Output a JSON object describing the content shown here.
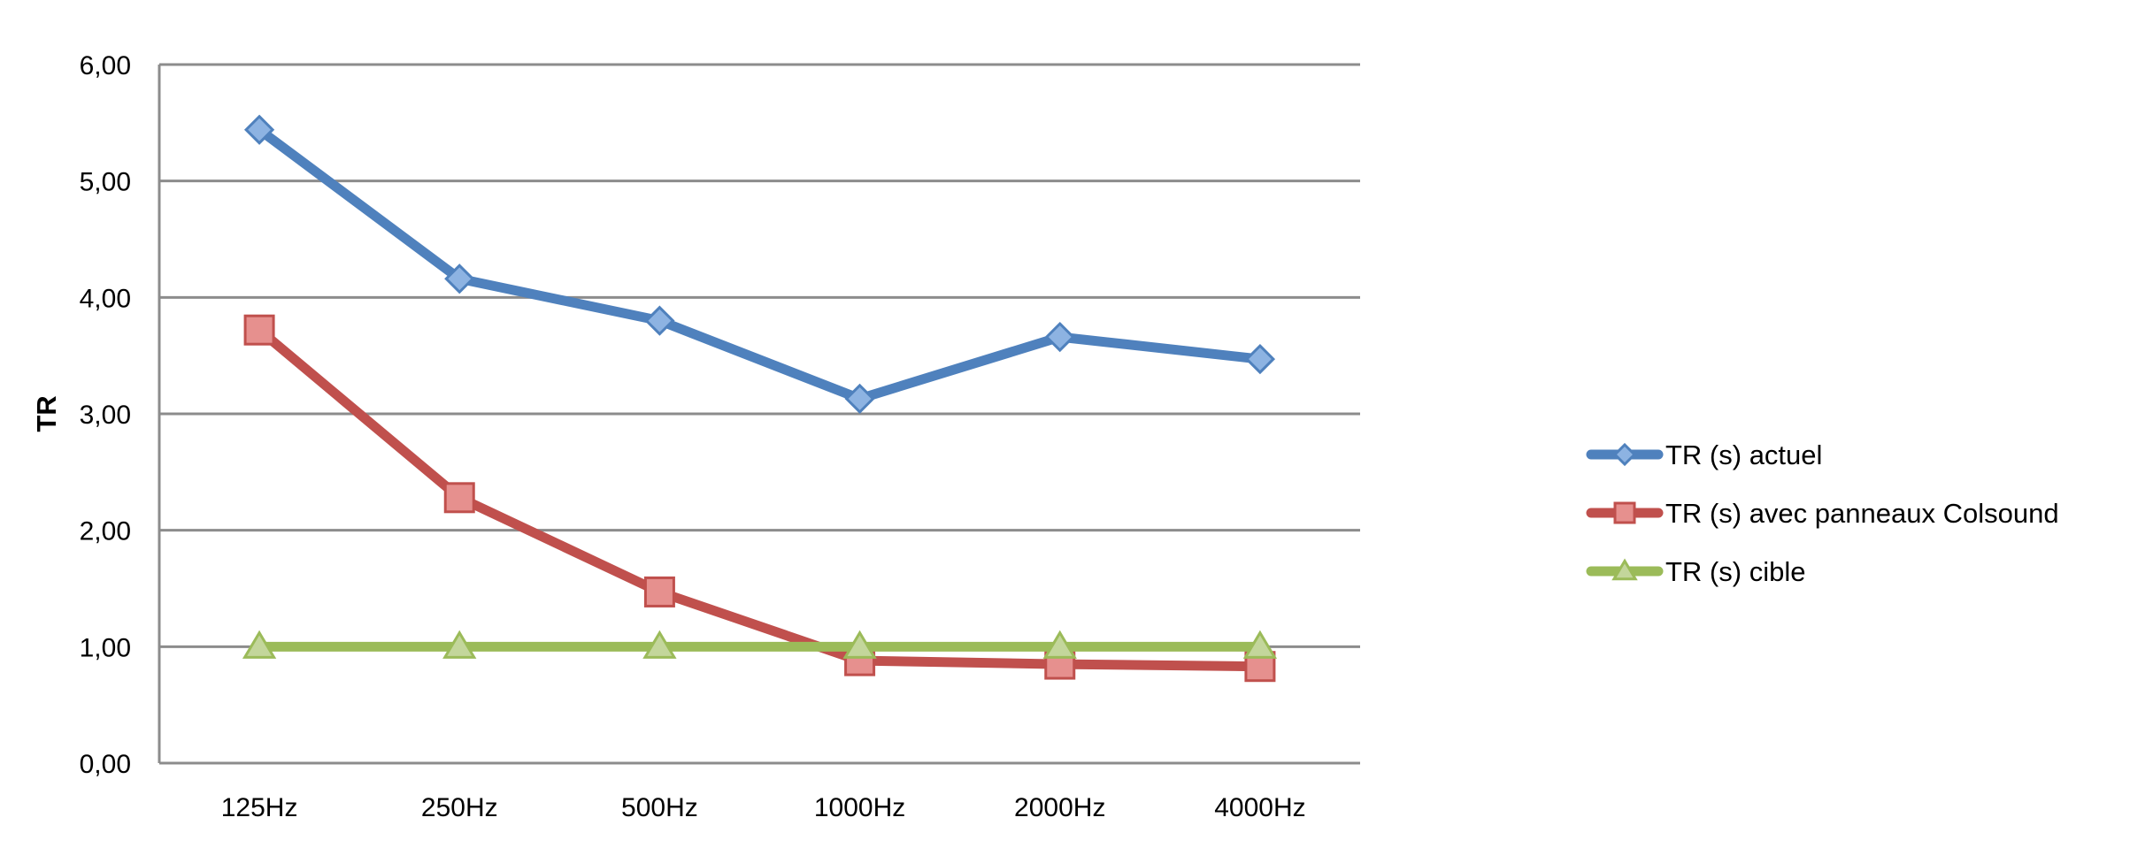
{
  "chart_data": {
    "type": "line",
    "categories": [
      "125Hz",
      "250Hz",
      "500Hz",
      "1000Hz",
      "2000Hz",
      "4000Hz"
    ],
    "series": [
      {
        "name": "TR (s) actuel",
        "values": [
          5.44,
          4.16,
          3.8,
          3.13,
          3.66,
          3.47
        ],
        "color": "#4f81bd",
        "marker": "diamond",
        "marker_fill": "#8db3e2"
      },
      {
        "name": "TR (s) avec panneaux Colsound",
        "values": [
          3.72,
          2.28,
          1.47,
          0.88,
          0.85,
          0.83
        ],
        "color": "#c0504d",
        "marker": "square",
        "marker_fill": "#e6908e"
      },
      {
        "name": "TR (s) cible",
        "values": [
          1.0,
          1.0,
          1.0,
          1.0,
          1.0,
          1.0
        ],
        "color": "#9bbb59",
        "marker": "triangle",
        "marker_fill": "#c3d69b"
      }
    ],
    "ylabel": "TR",
    "xlabel": "",
    "title": "",
    "ylim": [
      0,
      6
    ],
    "yticks": [
      "0,00",
      "1,00",
      "2,00",
      "3,00",
      "4,00",
      "5,00",
      "6,00"
    ],
    "grid": true,
    "legend_position": "right"
  }
}
